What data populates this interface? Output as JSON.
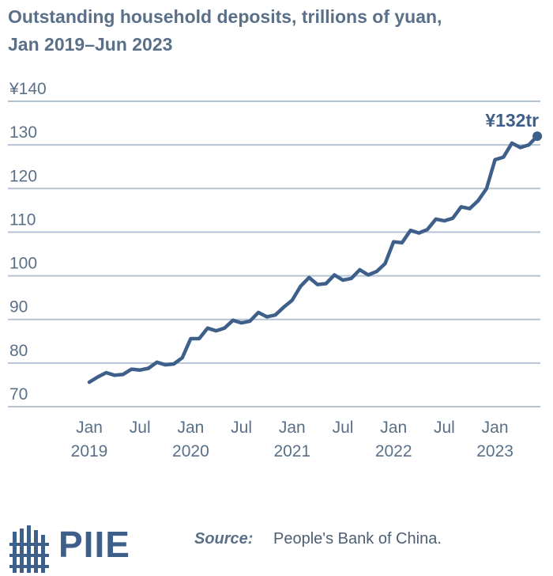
{
  "header": {
    "title_line1": "Outstanding household deposits, trillions of yuan,",
    "title_line2": "Jan 2019–Jun 2023"
  },
  "footer": {
    "brand": "PIIE",
    "source_label": "Source:",
    "source_text": "People's Bank of China."
  },
  "colors": {
    "line": "#3d5f8a",
    "grid": "#b5c3d3",
    "text": "#5a7089"
  },
  "chart_data": {
    "type": "line",
    "title": "Outstanding household deposits, trillions of yuan, Jan 2019–Jun 2023",
    "xlabel": "",
    "ylabel": "",
    "ylim": [
      70,
      140
    ],
    "y_ticks": [
      {
        "value": 140,
        "label": "¥140"
      },
      {
        "value": 130,
        "label": "130"
      },
      {
        "value": 120,
        "label": "120"
      },
      {
        "value": 110,
        "label": "110"
      },
      {
        "value": 100,
        "label": "100"
      },
      {
        "value": 90,
        "label": "90"
      },
      {
        "value": 80,
        "label": "80"
      },
      {
        "value": 70,
        "label": "70"
      }
    ],
    "x_ticks": [
      {
        "month": "2019-01",
        "line1": "Jan",
        "line2": "2019"
      },
      {
        "month": "2019-07",
        "line1": "Jul",
        "line2": ""
      },
      {
        "month": "2020-01",
        "line1": "Jan",
        "line2": "2020"
      },
      {
        "month": "2020-07",
        "line1": "Jul",
        "line2": ""
      },
      {
        "month": "2021-01",
        "line1": "Jan",
        "line2": "2021"
      },
      {
        "month": "2021-07",
        "line1": "Jul",
        "line2": ""
      },
      {
        "month": "2022-01",
        "line1": "Jan",
        "line2": "2022"
      },
      {
        "month": "2022-07",
        "line1": "Jul",
        "line2": ""
      },
      {
        "month": "2023-01",
        "line1": "Jan",
        "line2": "2023"
      }
    ],
    "grid": true,
    "end_label": "¥132tr",
    "series": [
      {
        "name": "",
        "x": [
          "2019-01",
          "2019-02",
          "2019-03",
          "2019-04",
          "2019-05",
          "2019-06",
          "2019-07",
          "2019-08",
          "2019-09",
          "2019-10",
          "2019-11",
          "2019-12",
          "2020-01",
          "2020-02",
          "2020-03",
          "2020-04",
          "2020-05",
          "2020-06",
          "2020-07",
          "2020-08",
          "2020-09",
          "2020-10",
          "2020-11",
          "2020-12",
          "2021-01",
          "2021-02",
          "2021-03",
          "2021-04",
          "2021-05",
          "2021-06",
          "2021-07",
          "2021-08",
          "2021-09",
          "2021-10",
          "2021-11",
          "2021-12",
          "2022-01",
          "2022-02",
          "2022-03",
          "2022-04",
          "2022-05",
          "2022-06",
          "2022-07",
          "2022-08",
          "2022-09",
          "2022-10",
          "2022-11",
          "2022-12",
          "2023-01",
          "2023-02",
          "2023-03",
          "2023-04",
          "2023-05",
          "2023-06"
        ],
        "values": [
          75.6,
          76.8,
          77.8,
          77.2,
          77.4,
          78.6,
          78.4,
          78.8,
          80.2,
          79.6,
          79.8,
          81.2,
          85.6,
          85.6,
          88.0,
          87.4,
          88.0,
          89.8,
          89.2,
          89.6,
          91.6,
          90.6,
          91.0,
          92.8,
          94.4,
          97.6,
          99.6,
          98.0,
          98.2,
          100.2,
          99.0,
          99.4,
          101.4,
          100.2,
          101.0,
          102.8,
          107.8,
          107.6,
          110.4,
          109.8,
          110.6,
          113.0,
          112.6,
          113.2,
          115.8,
          115.4,
          117.2,
          120.0,
          126.6,
          127.2,
          130.4,
          129.4,
          130.0,
          132.0
        ]
      }
    ]
  }
}
